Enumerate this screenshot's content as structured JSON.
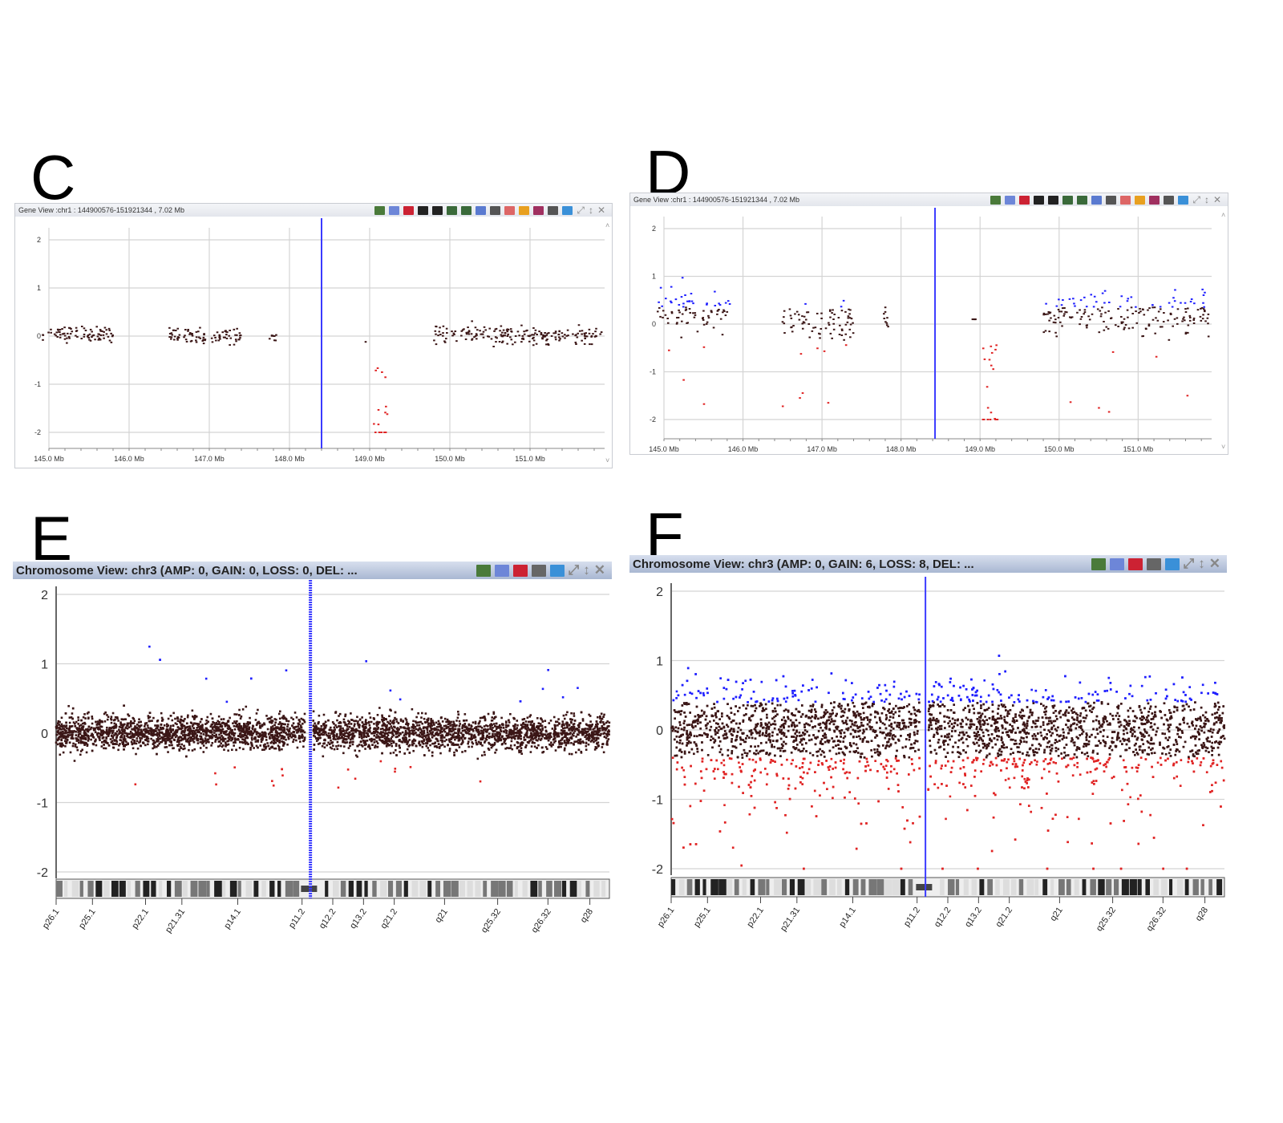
{
  "panels": [
    {
      "letter": "C",
      "title": "Gene View :chr1 : 144900576-151921344 , 7.02 Mb",
      "kind": "gene"
    },
    {
      "letter": "D",
      "title": "Gene View :chr1 : 144900576-151921344 , 7.02 Mb",
      "kind": "gene"
    },
    {
      "letter": "E",
      "title": "Chromosome View: chr3 (AMP: 0, GAIN: 0, LOSS: 0, DEL: ...",
      "kind": "chrom"
    },
    {
      "letter": "F",
      "title": "Chromosome View: chr3 (AMP: 0, GAIN: 6, LOSS: 8, DEL: ...",
      "kind": "chrom"
    }
  ],
  "toolbar": {
    "gene_icons": [
      "genome-icon",
      "lines-icon",
      "color-bar-icon",
      "triangle-down-icon",
      "triangle-up-icon",
      "zoom-in-icon",
      "zoom-out-icon",
      "table-icon",
      "eye-icon",
      "image-icon",
      "bar-chart-icon",
      "flag-icon",
      "export-icon",
      "refresh-icon"
    ],
    "chrom_icons": [
      "genome-icon",
      "lines-icon",
      "flag-icon",
      "export-icon",
      "refresh-icon"
    ],
    "pin_label": "⤢",
    "restore_label": "↕",
    "close_label": "✕"
  },
  "colors": {
    "point": "#3b1616",
    "gain": "#1f1fff",
    "loss": "#e02424",
    "marker": "#3b3bff",
    "grid": "#d4d4d4"
  },
  "chart_data": [
    {
      "type": "scatter",
      "panel": "C",
      "ylim": [
        -2,
        2
      ],
      "xlim": [
        144.9,
        151.92
      ],
      "y_ticks": [
        "2",
        "1",
        "0",
        "-1",
        "-2"
      ],
      "x_ticks": [
        "145.0 Mb",
        "146.0 Mb",
        "147.0 Mb",
        "148.0 Mb",
        "149.0 Mb",
        "150.0 Mb",
        "151.0 Mb"
      ],
      "x_tick_values": [
        145,
        146,
        147,
        148,
        149,
        150,
        151
      ],
      "marker_x": 148.4,
      "segments": [
        {
          "x": [
            144.92,
            145.8
          ],
          "y": 0.05,
          "sd": 0.08,
          "color": "point"
        },
        {
          "x": [
            146.5,
            147.4
          ],
          "y": 0.0,
          "sd": 0.08,
          "color": "point"
        },
        {
          "x": [
            147.75,
            147.85
          ],
          "y": -0.02,
          "sd": 0.06,
          "color": "point"
        },
        {
          "x": [
            148.95,
            148.95
          ],
          "y": -0.12,
          "sd": 0,
          "color": "point"
        },
        {
          "x": [
            149.05,
            149.22
          ],
          "y": -1.4,
          "sd": 0.55,
          "color": "loss"
        },
        {
          "x": [
            149.8,
            151.9
          ],
          "y": 0.02,
          "sd": 0.09,
          "color": "point"
        }
      ]
    },
    {
      "type": "scatter",
      "panel": "D",
      "ylim": [
        -2,
        2
      ],
      "xlim": [
        144.9,
        151.92
      ],
      "y_ticks": [
        "2",
        "1",
        "0",
        "-1",
        "-2"
      ],
      "x_ticks": [
        "145.0 Mb",
        "146.0 Mb",
        "147.0 Mb",
        "148.0 Mb",
        "149.0 Mb",
        "150.0 Mb",
        "151.0 Mb"
      ],
      "x_tick_values": [
        145,
        146,
        147,
        148,
        149,
        150,
        151
      ],
      "marker_x": 148.43,
      "segments": [
        {
          "x": [
            144.92,
            145.85
          ],
          "y": 0.25,
          "sd": 0.22,
          "color": "mixed"
        },
        {
          "x": [
            146.5,
            147.4
          ],
          "y": 0.0,
          "sd": 0.2,
          "color": "mixed"
        },
        {
          "x": [
            147.75,
            147.85
          ],
          "y": 0.1,
          "sd": 0.1,
          "color": "point"
        },
        {
          "x": [
            148.9,
            148.95
          ],
          "y": 0.1,
          "sd": 0,
          "color": "point"
        },
        {
          "x": [
            149.0,
            149.22
          ],
          "y": -1.3,
          "sd": 0.6,
          "color": "loss"
        },
        {
          "x": [
            149.8,
            151.9
          ],
          "y": 0.2,
          "sd": 0.22,
          "color": "mixed"
        }
      ]
    },
    {
      "type": "scatter",
      "panel": "E",
      "ylim": [
        -2,
        2
      ],
      "xlim": [
        0,
        198
      ],
      "y_ticks": [
        "2",
        "1",
        "0",
        "-1",
        "-2"
      ],
      "marker_x": 91,
      "centromere": 90.5,
      "band_labels": [
        "p26.1",
        "p25.1",
        "p22.1",
        "p21.31",
        "p14.1",
        "p11.2",
        "q12.2",
        "q13.2",
        "q21.2",
        "q21",
        "q25.32",
        "q26.32",
        "q28"
      ],
      "band_positions": [
        0,
        13,
        32,
        45,
        65,
        88,
        99,
        110,
        121,
        139,
        158,
        176,
        191
      ],
      "distribution": {
        "mean": 0,
        "sd": 0.12,
        "gain_threshold": 0.4,
        "loss_threshold": -0.4,
        "outliers": "few"
      }
    },
    {
      "type": "scatter",
      "panel": "F",
      "ylim": [
        -2,
        2
      ],
      "xlim": [
        0,
        198
      ],
      "y_ticks": [
        "2",
        "1",
        "0",
        "-1",
        "-2"
      ],
      "marker_x": 91,
      "centromere": 90.5,
      "band_labels": [
        "p26.1",
        "p25.1",
        "p22.1",
        "p21.31",
        "p14.1",
        "p11.2",
        "q12.2",
        "q13.2",
        "q21.2",
        "q21",
        "q25.32",
        "q26.32",
        "q28"
      ],
      "band_positions": [
        0,
        13,
        32,
        45,
        65,
        88,
        99,
        110,
        121,
        139,
        158,
        176,
        191
      ],
      "distribution": {
        "mean": 0,
        "sd": 0.3,
        "gain_threshold": 0.4,
        "loss_threshold": -0.4,
        "outliers": "many"
      }
    }
  ]
}
